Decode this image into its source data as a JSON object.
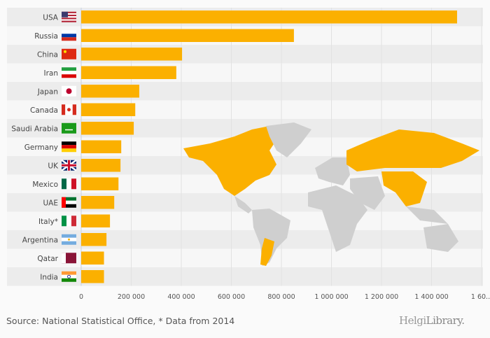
{
  "chart_data": {
    "type": "bar",
    "orientation": "horizontal",
    "categories": [
      "USA",
      "Russia",
      "China",
      "Iran",
      "Japan",
      "Canada",
      "Saudi Arabia",
      "Germany",
      "UK",
      "Mexico",
      "UAE",
      "Italy*",
      "Argentina",
      "Qatar",
      "India"
    ],
    "flags": [
      "us",
      "ru",
      "cn",
      "ir",
      "jp",
      "ca",
      "sa",
      "de",
      "gb",
      "mx",
      "ae",
      "it",
      "ar",
      "qa",
      "in"
    ],
    "values": [
      1502000,
      850000,
      403000,
      380000,
      232000,
      216000,
      210000,
      160000,
      157000,
      149000,
      132000,
      115000,
      101000,
      91000,
      91000
    ],
    "xlim": [
      0,
      1600000
    ],
    "xticks": [
      0,
      200000,
      400000,
      600000,
      800000,
      1000000,
      1200000,
      1400000,
      1600000
    ],
    "xtick_labels": [
      "0",
      "200 000",
      "400 000",
      "600 000",
      "800 000",
      "1 000 000",
      "1 200 000",
      "1 400 000",
      "1 60..."
    ],
    "grid": true,
    "bar_color": "#fbb000",
    "map_highlight_color": "#fbb000",
    "map_base_color": "#cfcfcf"
  },
  "footer": {
    "source": "Source: National Statistical Office, * Data from 2014",
    "logo_a": "Helgi",
    "logo_b": "Library."
  }
}
